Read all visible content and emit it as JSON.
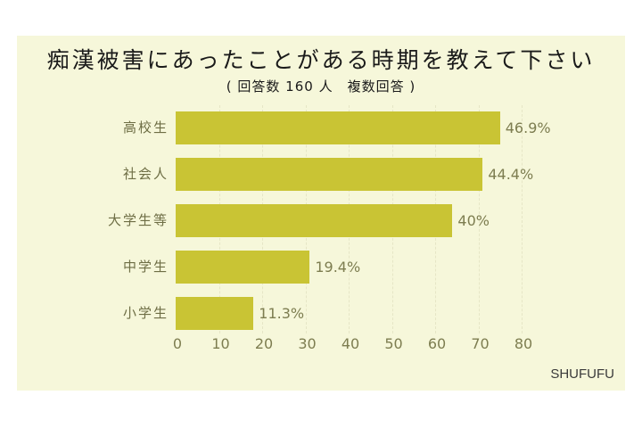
{
  "title": "痴漢被害にあったことがある時期を教えて下さい",
  "subtitle": "( 回答数 160 人　複数回答 )",
  "brand": "SHUFUFU",
  "colors": {
    "background": "#F6F7DA",
    "bar": "#C9C434",
    "label": "#6E6E45"
  },
  "chart_data": {
    "type": "bar",
    "orientation": "horizontal",
    "title": "痴漢被害にあったことがある時期を教えて下さい",
    "subtitle": "( 回答数 160 人　複数回答 )",
    "categories": [
      "高校生",
      "社会人",
      "大学生等",
      "中学生",
      "小学生"
    ],
    "values": [
      75,
      71,
      64,
      31,
      18
    ],
    "value_labels": [
      "46.9%",
      "44.4%",
      "40%",
      "19.4%",
      "11.3%"
    ],
    "xlabel": "",
    "ylabel": "",
    "xlim": [
      0,
      80
    ],
    "xticks": [
      "0",
      "10",
      "20",
      "30",
      "40",
      "50",
      "60",
      "70",
      "80"
    ],
    "grid": true,
    "legend": "none"
  }
}
